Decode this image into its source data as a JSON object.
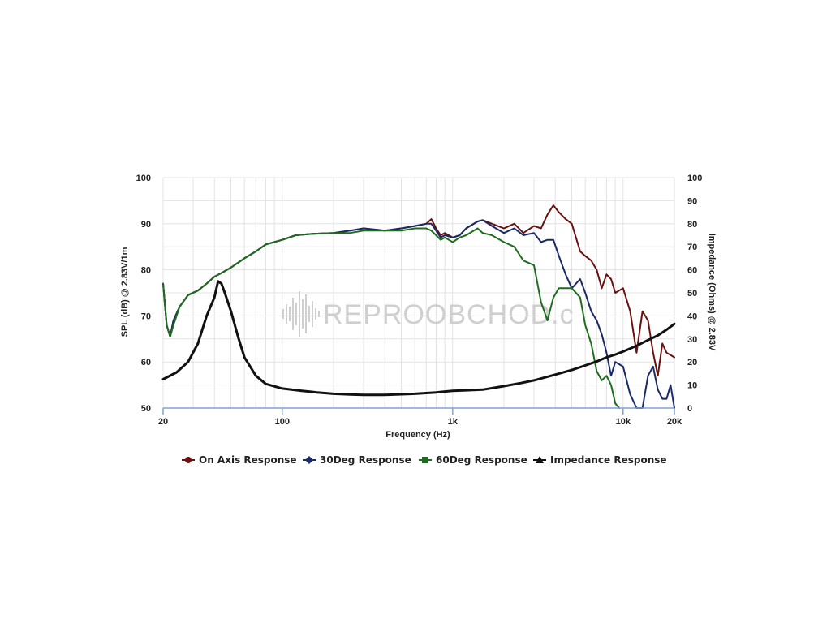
{
  "watermark": {
    "text": "REPROOBCHOD.c"
  },
  "chart_data": {
    "type": "line",
    "xlabel": "Frequency (Hz)",
    "ylabel": "SPL (dB) @ 2.83V/1m",
    "y2label": "Impedance (Ohms) @ 2.83V",
    "xscale": "log",
    "xlim": [
      20,
      20000
    ],
    "ylim": [
      50,
      100
    ],
    "y2lim": [
      0,
      100
    ],
    "x_ticks": [
      {
        "value": 20,
        "label": "20"
      },
      {
        "value": 100,
        "label": "100"
      },
      {
        "value": 1000,
        "label": "1k"
      },
      {
        "value": 10000,
        "label": "10k"
      },
      {
        "value": 20000,
        "label": "20k"
      }
    ],
    "y_ticks": [
      "50",
      "60",
      "70",
      "80",
      "90",
      "100"
    ],
    "y2_ticks": [
      "0",
      "10",
      "20",
      "30",
      "40",
      "50",
      "60",
      "70",
      "80",
      "90",
      "100"
    ],
    "grid": true,
    "legend_position": "bottom",
    "series": [
      {
        "name": "On Axis Response",
        "axis": "left",
        "color": "#6b1010",
        "marker": "circle",
        "points": [
          [
            20,
            77
          ],
          [
            21,
            68
          ],
          [
            22,
            65.5
          ],
          [
            23,
            69
          ],
          [
            25,
            72
          ],
          [
            28,
            74.5
          ],
          [
            32,
            75.5
          ],
          [
            36,
            77
          ],
          [
            40,
            78.5
          ],
          [
            45,
            79.5
          ],
          [
            50,
            80.5
          ],
          [
            60,
            82.5
          ],
          [
            70,
            84
          ],
          [
            80,
            85.5
          ],
          [
            100,
            86.5
          ],
          [
            120,
            87.5
          ],
          [
            150,
            87.8
          ],
          [
            200,
            88
          ],
          [
            250,
            88.5
          ],
          [
            300,
            89
          ],
          [
            400,
            88.5
          ],
          [
            500,
            89
          ],
          [
            600,
            89.5
          ],
          [
            700,
            90
          ],
          [
            750,
            91
          ],
          [
            800,
            89
          ],
          [
            850,
            87.5
          ],
          [
            900,
            88
          ],
          [
            1000,
            87
          ],
          [
            1100,
            87.5
          ],
          [
            1200,
            89
          ],
          [
            1400,
            90.5
          ],
          [
            1500,
            90.8
          ],
          [
            1700,
            90
          ],
          [
            2000,
            89
          ],
          [
            2300,
            90
          ],
          [
            2600,
            88
          ],
          [
            3000,
            89.5
          ],
          [
            3300,
            89
          ],
          [
            3600,
            92
          ],
          [
            3900,
            94
          ],
          [
            4200,
            92.5
          ],
          [
            4600,
            91
          ],
          [
            5000,
            90
          ],
          [
            5600,
            84
          ],
          [
            6000,
            83
          ],
          [
            6500,
            82
          ],
          [
            7000,
            80
          ],
          [
            7500,
            76
          ],
          [
            8000,
            79
          ],
          [
            8500,
            78
          ],
          [
            9000,
            75
          ],
          [
            10000,
            76
          ],
          [
            11000,
            71
          ],
          [
            12000,
            62
          ],
          [
            13000,
            71
          ],
          [
            14000,
            69
          ],
          [
            15000,
            62
          ],
          [
            16000,
            57
          ],
          [
            17000,
            64
          ],
          [
            18000,
            62
          ],
          [
            20000,
            61
          ]
        ]
      },
      {
        "name": "30Deg Response",
        "axis": "left",
        "color": "#1a2a66",
        "marker": "diamond",
        "points": [
          [
            20,
            77
          ],
          [
            21,
            68
          ],
          [
            22,
            65.5
          ],
          [
            23,
            69
          ],
          [
            25,
            72
          ],
          [
            28,
            74.5
          ],
          [
            32,
            75.5
          ],
          [
            36,
            77
          ],
          [
            40,
            78.5
          ],
          [
            45,
            79.5
          ],
          [
            50,
            80.5
          ],
          [
            60,
            82.5
          ],
          [
            70,
            84
          ],
          [
            80,
            85.5
          ],
          [
            100,
            86.5
          ],
          [
            120,
            87.5
          ],
          [
            150,
            87.8
          ],
          [
            200,
            88
          ],
          [
            250,
            88.5
          ],
          [
            300,
            89
          ],
          [
            400,
            88.5
          ],
          [
            500,
            89
          ],
          [
            600,
            89.5
          ],
          [
            700,
            90
          ],
          [
            750,
            90
          ],
          [
            800,
            88.5
          ],
          [
            850,
            87
          ],
          [
            900,
            87.5
          ],
          [
            1000,
            87
          ],
          [
            1100,
            87.5
          ],
          [
            1200,
            89
          ],
          [
            1400,
            90.5
          ],
          [
            1500,
            90.8
          ],
          [
            1700,
            89.5
          ],
          [
            2000,
            88
          ],
          [
            2300,
            89
          ],
          [
            2600,
            87.5
          ],
          [
            3000,
            88
          ],
          [
            3300,
            86
          ],
          [
            3600,
            86.5
          ],
          [
            3900,
            86.5
          ],
          [
            4200,
            83
          ],
          [
            4600,
            79
          ],
          [
            5000,
            76
          ],
          [
            5600,
            78
          ],
          [
            6000,
            75
          ],
          [
            6500,
            71
          ],
          [
            7000,
            69
          ],
          [
            7500,
            66
          ],
          [
            8000,
            62
          ],
          [
            8500,
            57
          ],
          [
            9000,
            60
          ],
          [
            10000,
            59
          ],
          [
            11000,
            53
          ],
          [
            12000,
            50
          ],
          [
            13000,
            50
          ],
          [
            14000,
            57
          ],
          [
            15000,
            59
          ],
          [
            16000,
            54
          ],
          [
            17000,
            52
          ],
          [
            18000,
            52
          ],
          [
            19000,
            55
          ],
          [
            20000,
            50
          ]
        ]
      },
      {
        "name": "60Deg Response",
        "axis": "left",
        "color": "#1f6b1f",
        "marker": "square",
        "points": [
          [
            20,
            77
          ],
          [
            21,
            68
          ],
          [
            22,
            65.5
          ],
          [
            23,
            68
          ],
          [
            25,
            72
          ],
          [
            28,
            74.5
          ],
          [
            32,
            75.5
          ],
          [
            36,
            77
          ],
          [
            40,
            78.5
          ],
          [
            45,
            79.5
          ],
          [
            50,
            80.5
          ],
          [
            60,
            82.5
          ],
          [
            70,
            84
          ],
          [
            80,
            85.5
          ],
          [
            100,
            86.5
          ],
          [
            120,
            87.5
          ],
          [
            150,
            87.8
          ],
          [
            200,
            88
          ],
          [
            250,
            88
          ],
          [
            300,
            88.5
          ],
          [
            400,
            88.5
          ],
          [
            500,
            88.5
          ],
          [
            600,
            89
          ],
          [
            700,
            89
          ],
          [
            750,
            88.5
          ],
          [
            800,
            87.5
          ],
          [
            850,
            86.5
          ],
          [
            900,
            87
          ],
          [
            1000,
            86
          ],
          [
            1100,
            87
          ],
          [
            1200,
            87.5
          ],
          [
            1400,
            89
          ],
          [
            1500,
            88
          ],
          [
            1700,
            87.5
          ],
          [
            2000,
            86
          ],
          [
            2300,
            85
          ],
          [
            2600,
            82
          ],
          [
            3000,
            81
          ],
          [
            3300,
            73
          ],
          [
            3600,
            69
          ],
          [
            3900,
            74
          ],
          [
            4200,
            76
          ],
          [
            4600,
            76
          ],
          [
            5000,
            76
          ],
          [
            5600,
            74
          ],
          [
            6000,
            68
          ],
          [
            6500,
            64
          ],
          [
            7000,
            58
          ],
          [
            7500,
            56
          ],
          [
            8000,
            57
          ],
          [
            8500,
            55
          ],
          [
            9000,
            51
          ],
          [
            9500,
            50
          ]
        ]
      },
      {
        "name": "Impedance Response",
        "axis": "right",
        "color": "#111111",
        "marker": "triangle",
        "points": [
          [
            20,
            12.5
          ],
          [
            24,
            15.5
          ],
          [
            28,
            20
          ],
          [
            32,
            28
          ],
          [
            36,
            40
          ],
          [
            40,
            48
          ],
          [
            42,
            55
          ],
          [
            44,
            54
          ],
          [
            46,
            50
          ],
          [
            50,
            42
          ],
          [
            55,
            31
          ],
          [
            60,
            22
          ],
          [
            70,
            14
          ],
          [
            80,
            10.5
          ],
          [
            100,
            8.5
          ],
          [
            130,
            7.5
          ],
          [
            160,
            6.8
          ],
          [
            200,
            6.2
          ],
          [
            250,
            5.9
          ],
          [
            300,
            5.7
          ],
          [
            400,
            5.7
          ],
          [
            500,
            6
          ],
          [
            600,
            6.2
          ],
          [
            700,
            6.5
          ],
          [
            800,
            6.8
          ],
          [
            900,
            7.2
          ],
          [
            1000,
            7.5
          ],
          [
            1200,
            7.7
          ],
          [
            1500,
            8
          ],
          [
            2000,
            9.5
          ],
          [
            2500,
            10.8
          ],
          [
            3000,
            12
          ],
          [
            4000,
            14.5
          ],
          [
            5000,
            16.5
          ],
          [
            6000,
            18.5
          ],
          [
            7000,
            20.2
          ],
          [
            8000,
            22
          ],
          [
            9000,
            23.2
          ],
          [
            10000,
            24.5
          ],
          [
            12000,
            27
          ],
          [
            14000,
            29.5
          ],
          [
            16000,
            31.5
          ],
          [
            18000,
            34
          ],
          [
            20000,
            36.5
          ]
        ]
      }
    ]
  }
}
